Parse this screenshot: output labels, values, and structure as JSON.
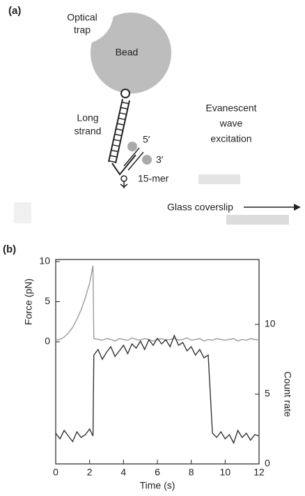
{
  "figure": {
    "panel_a": "(a)",
    "panel_b": "(b)"
  },
  "diagram": {
    "optical_trap": [
      "Optical",
      "trap"
    ],
    "bead": "Bead",
    "long_strand": [
      "Long",
      "strand"
    ],
    "evanescent": [
      "Evanescent",
      "wave",
      "excitation"
    ],
    "five_prime": "5′",
    "three_prime": "3′",
    "fifteen_mer": "15-mer",
    "glass_coverslip": "Glass coverslip"
  },
  "chart_data": {
    "type": "line",
    "xlabel": "Time (s)",
    "ylabel": "Force (pN)",
    "y2label": "Count rate",
    "x": [
      0,
      0.25,
      0.5,
      0.75,
      1,
      1.25,
      1.5,
      1.75,
      2,
      2.2,
      2.25,
      2.5,
      2.75,
      3,
      3.25,
      3.5,
      3.75,
      4,
      4.25,
      4.5,
      4.75,
      5,
      5.25,
      5.5,
      5.75,
      6,
      6.25,
      6.5,
      6.75,
      7,
      7.25,
      7.5,
      7.75,
      8,
      8.25,
      8.5,
      8.75,
      9,
      9.25,
      9.5,
      9.75,
      10,
      10.25,
      10.5,
      10.75,
      11,
      11.25,
      11.5,
      11.75,
      12
    ],
    "series": [
      {
        "name": "Force (pN)",
        "color": "#9a9a9a",
        "axis": "y",
        "values": [
          0.2,
          0.3,
          0.6,
          1.1,
          1.8,
          2.8,
          4.0,
          5.5,
          7.3,
          9.5,
          0.4,
          0.3,
          0.2,
          0.4,
          0.3,
          0.1,
          0.4,
          0.3,
          0.2,
          0.5,
          0.3,
          0.2,
          0.4,
          0.3,
          0.1,
          0.3,
          0.4,
          0.2,
          0.3,
          0.4,
          0.2,
          0.3,
          0.5,
          0.2,
          0.3,
          0.4,
          0.1,
          0.3,
          0.2,
          0.4,
          0.3,
          0.2,
          0.3,
          0.4,
          0.1,
          0.3,
          0.2,
          0.4,
          0.3,
          0.2
        ]
      },
      {
        "name": "Count rate",
        "color": "#333333",
        "axis": "y2",
        "values": [
          2.2,
          1.8,
          2.4,
          2.0,
          1.6,
          2.3,
          1.9,
          2.1,
          2.5,
          2.0,
          7.8,
          8.2,
          7.5,
          8.0,
          8.4,
          7.7,
          8.1,
          8.5,
          7.9,
          8.6,
          8.3,
          8.8,
          8.2,
          8.9,
          8.5,
          9.0,
          8.6,
          8.9,
          8.4,
          9.2,
          8.5,
          8.7,
          8.1,
          8.4,
          7.8,
          8.2,
          7.6,
          7.8,
          2.2,
          1.9,
          2.3,
          1.8,
          2.1,
          1.5,
          2.4,
          1.9,
          2.2,
          1.7,
          2.1,
          2.0
        ]
      }
    ],
    "xlim": [
      0,
      12
    ],
    "xticks": [
      0,
      2,
      4,
      6,
      8,
      10,
      12
    ],
    "ylim": [
      0,
      10
    ],
    "yticks": [
      0,
      5,
      10
    ],
    "y2lim": [
      0,
      10
    ],
    "y2ticks": [
      0,
      5,
      10
    ]
  }
}
